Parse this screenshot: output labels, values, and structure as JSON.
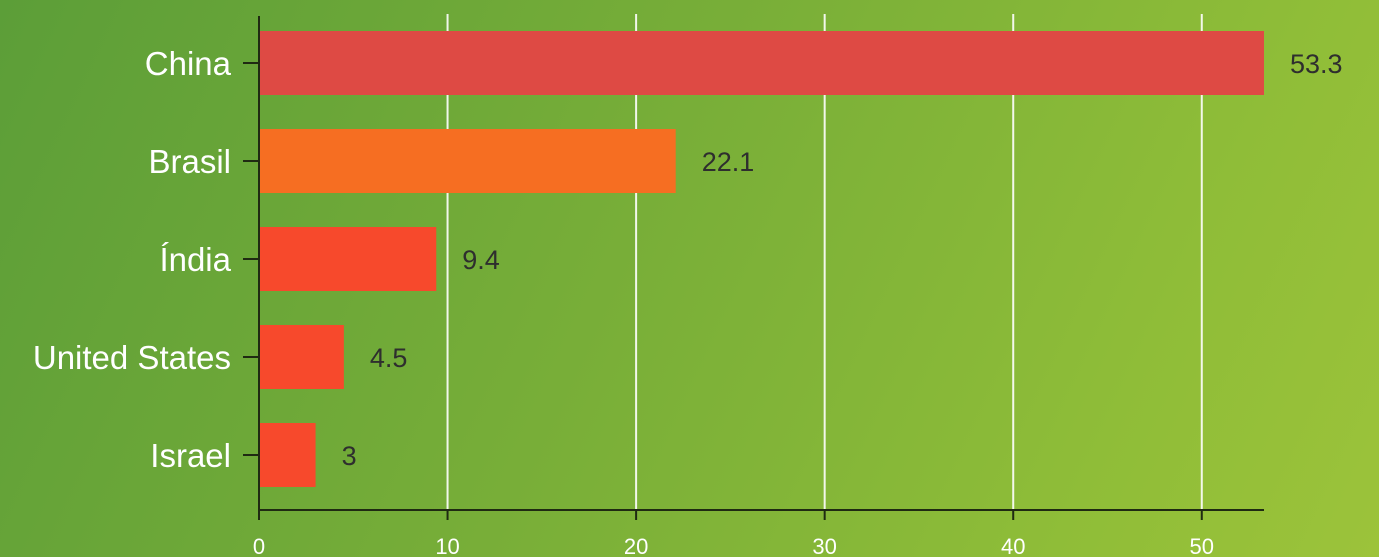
{
  "chart_data": {
    "type": "bar",
    "orientation": "horizontal",
    "title": "",
    "xlabel": "",
    "ylabel": "",
    "categories": [
      "China",
      "Brasil",
      "Índia",
      "United States",
      "Israel"
    ],
    "values": [
      53.3,
      22.1,
      9.4,
      4.5,
      3
    ],
    "value_labels": [
      "53.3",
      "22.1",
      "9.4",
      "4.5",
      "3"
    ],
    "xlim": [
      0,
      53.3
    ],
    "xticks": [
      0,
      10,
      20,
      30,
      40,
      50
    ],
    "xtick_labels": [
      "0",
      "10",
      "20",
      "30",
      "40",
      "50"
    ],
    "grid": "vertical",
    "legend": "none",
    "colors": {
      "bars": [
        "#de4a44",
        "#f66e22",
        "#f7492c",
        "#f7492c",
        "#f7492c"
      ],
      "gridlines": "#ffffff",
      "axis": "#1f2a12",
      "category_text": "#ffffff",
      "value_text": "#2e2e2e",
      "tick_text": "#ffffff"
    }
  }
}
